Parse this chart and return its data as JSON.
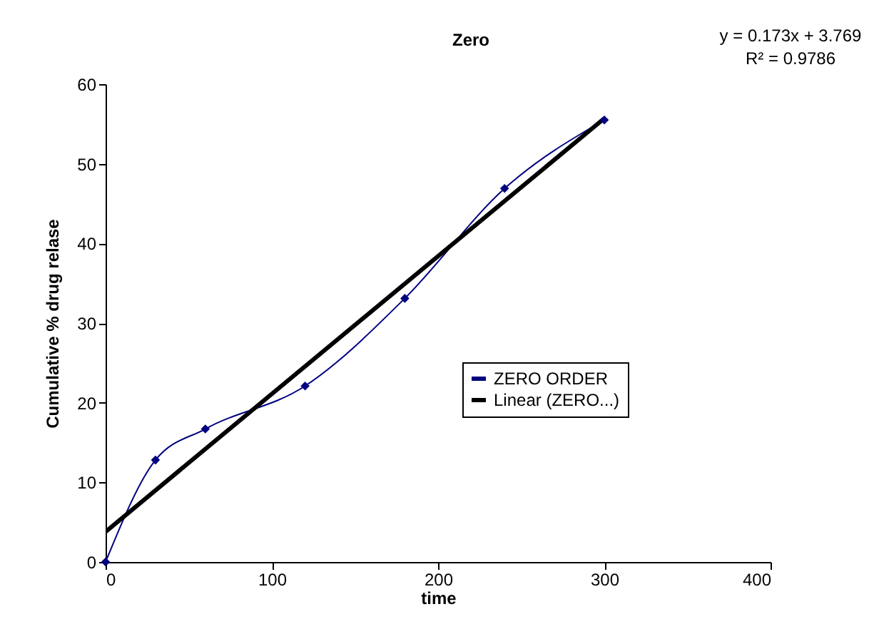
{
  "chart_data": {
    "type": "line",
    "title": "Zero",
    "xlabel": "time",
    "ylabel": "Cumulative % drug relase",
    "annotations": [
      "y = 0.173x + 3.769",
      "R² = 0.9786"
    ],
    "x": [
      0,
      30,
      60,
      120,
      180,
      240,
      300
    ],
    "series": [
      {
        "name": "ZERO ORDER",
        "color": "#000080",
        "marker": "diamond",
        "values": [
          0,
          12.8,
          16.7,
          22.1,
          33.1,
          46.9,
          55.5
        ]
      },
      {
        "name": "Linear (ZERO...)",
        "type": "line",
        "color": "#000000",
        "marker": "none",
        "x": [
          0,
          300
        ],
        "values": [
          3.8,
          55.7
        ]
      }
    ],
    "xlim": [
      0,
      400
    ],
    "xticks": [
      0,
      100,
      200,
      300,
      400
    ],
    "ylim": [
      0,
      60
    ],
    "yticks": [
      0,
      10,
      20,
      30,
      40,
      50,
      60
    ],
    "grid": false,
    "legend": "right"
  }
}
